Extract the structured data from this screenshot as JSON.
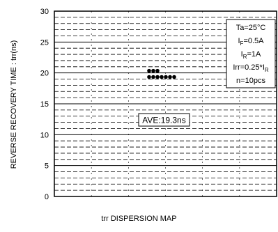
{
  "chart_data": {
    "type": "scatter",
    "title": "",
    "xlabel": "trr DISPERSION MAP",
    "ylabel": "REVERSE RECOVERY TIME : trr(ns)",
    "ylim": [
      0,
      30
    ],
    "yticks": [
      "0",
      "5",
      "10",
      "15",
      "20",
      "25",
      "30"
    ],
    "minor_grid_step": 1,
    "grid": true,
    "series": [
      {
        "x": [
          1,
          2,
          3,
          4,
          5,
          6,
          7,
          8,
          9,
          10
        ],
        "values": [
          20,
          20,
          20,
          19,
          19,
          19,
          19,
          19,
          19,
          19
        ]
      }
    ],
    "conditions": {
      "ta": "Ta=25°C",
      "if_main": "I",
      "if_sub": "F",
      "if_val": "=0.5A",
      "ir_main": "I",
      "ir_sub": "R",
      "ir_val": "=1A",
      "irr_main": "Irr=0.25*I",
      "irr_sub": "R",
      "n": "n=10pcs"
    },
    "average_label": "AVE:19.3ns"
  }
}
